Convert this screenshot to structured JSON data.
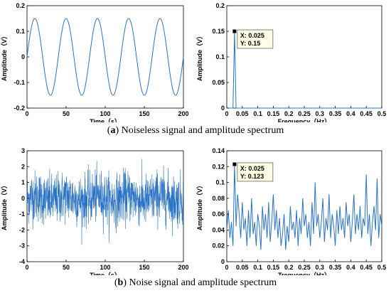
{
  "captions": {
    "a_label": "a",
    "a_text": " Noiseless signal and amplitude spectrum",
    "b_label": "b",
    "b_text": " Noise signal and amplitude spectrum"
  },
  "colors": {
    "line": "#2a73c4",
    "axis": "#000000",
    "marker": "#000000",
    "datatip_bg": "#ffffe6"
  },
  "chart_data": [
    {
      "id": "a-time",
      "type": "line",
      "title": "",
      "xlabel": "Time（s）",
      "ylabel": "Amplitude（V）",
      "xlim": [
        0,
        200
      ],
      "ylim": [
        -0.2,
        0.2
      ],
      "xticks": [
        0,
        50,
        100,
        150,
        200
      ],
      "yticks": [
        -0.2,
        -0.1,
        0,
        0.1,
        0.2
      ],
      "grid": false,
      "series": [
        {
          "function": "0.15*sin(2*pi*0.025*t)",
          "amplitude": 0.15,
          "frequency_hz": 0.025,
          "x_start": 0,
          "x_end": 200
        }
      ]
    },
    {
      "id": "a-spectrum",
      "type": "line",
      "title": "",
      "xlabel": "Frequency（Hz）",
      "ylabel": "Amplitude（V）",
      "xlim": [
        0,
        0.5
      ],
      "ylim": [
        0,
        0.2
      ],
      "xticks": [
        0,
        0.05,
        0.1,
        0.15,
        0.2,
        0.25,
        0.3,
        0.35,
        0.4,
        0.45,
        0.5
      ],
      "yticks": [
        0,
        0.05,
        0.1,
        0.15,
        0.2
      ],
      "grid": false,
      "series": [
        {
          "x": [
            0,
            0.02,
            0.025,
            0.03,
            0.5
          ],
          "y": [
            0,
            0,
            0.15,
            0,
            0
          ]
        }
      ],
      "datatip": {
        "x": 0.025,
        "y": 0.15,
        "x_text": "X: 0.025",
        "y_text": "Y: 0.15"
      }
    },
    {
      "id": "b-time",
      "type": "line",
      "title": "",
      "xlabel": "Time（s）",
      "ylabel": "Amplitude（V）",
      "xlim": [
        0,
        200
      ],
      "ylim": [
        -4,
        3
      ],
      "xticks": [
        0,
        50,
        100,
        150,
        200
      ],
      "yticks": [
        -4,
        -3,
        -2,
        -1,
        0,
        1,
        2,
        3
      ],
      "grid": false,
      "series": [
        {
          "description_values": "0.15 V sine at 0.025 Hz plus random noise",
          "noise_range": [
            -3.4,
            2.5
          ],
          "x_start": 0,
          "x_end": 200
        }
      ]
    },
    {
      "id": "b-spectrum",
      "type": "line",
      "title": "",
      "xlabel": "Trequency（Hz）",
      "ylabel": "Amplitude（V）",
      "xlim": [
        0,
        0.5
      ],
      "ylim": [
        0,
        0.14
      ],
      "xticks": [
        0,
        0.05,
        0.1,
        0.15,
        0.2,
        0.25,
        0.3,
        0.35,
        0.4,
        0.45,
        0.5
      ],
      "yticks": [
        0,
        0.02,
        0.04,
        0.06,
        0.08,
        0.1,
        0.12,
        0.14
      ],
      "grid": false,
      "series": [
        {
          "x_step": 0.005,
          "y": [
            0.04,
            0.065,
            0.03,
            0.05,
            0.02,
            0.123,
            0.045,
            0.085,
            0.06,
            0.03,
            0.075,
            0.04,
            0.055,
            0.02,
            0.065,
            0.03,
            0.08,
            0.035,
            0.05,
            0.02,
            0.06,
            0.045,
            0.015,
            0.07,
            0.04,
            0.06,
            0.03,
            0.075,
            0.025,
            0.05,
            0.085,
            0.04,
            0.065,
            0.03,
            0.055,
            0.02,
            0.035,
            0.06,
            0.015,
            0.045,
            0.025,
            0.07,
            0.04,
            0.05,
            0.03,
            0.065,
            0.02,
            0.055,
            0.035,
            0.08,
            0.045,
            0.06,
            0.03,
            0.05,
            0.02,
            0.075,
            0.035,
            0.1,
            0.045,
            0.06,
            0.03,
            0.05,
            0.08,
            0.025,
            0.055,
            0.04,
            0.085,
            0.03,
            0.06,
            0.045,
            0.02,
            0.065,
            0.035,
            0.07,
            0.04,
            0.055,
            0.03,
            0.075,
            0.045,
            0.06,
            0.025,
            0.05,
            0.085,
            0.035,
            0.06,
            0.04,
            0.07,
            0.03,
            0.055,
            0.045,
            0.11,
            0.035,
            0.06,
            0.02,
            0.05,
            0.07,
            0.04,
            0.105,
            0.03,
            0.06,
            0.045
          ]
        }
      ],
      "datatip": {
        "x": 0.025,
        "y": 0.123,
        "x_text": "X: 0.025",
        "y_text": "Y: 0.123"
      }
    }
  ]
}
